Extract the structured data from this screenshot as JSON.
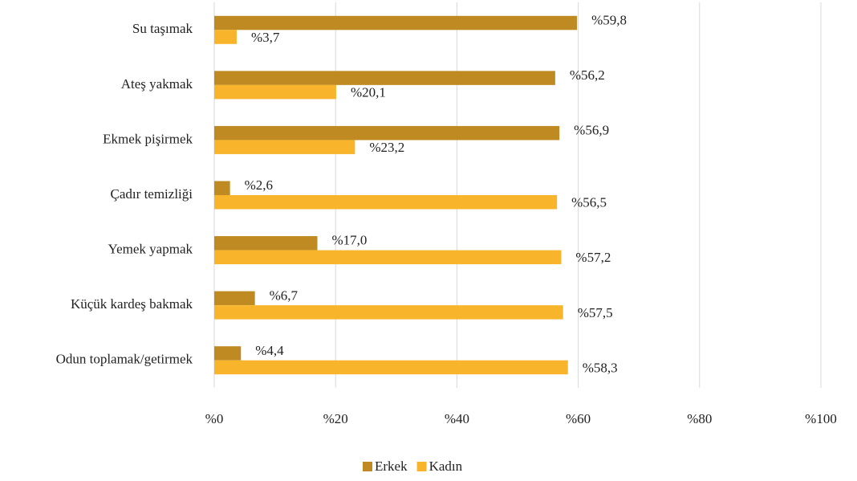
{
  "chart_data": {
    "type": "hbar",
    "categories": [
      "Su taşımak",
      "Ateş yakmak",
      "Ekmek pişirmek",
      "Çadır temizliği",
      "Yemek yapmak",
      "Küçük kardeş bakmak",
      "Odun toplamak/getirmek"
    ],
    "series": [
      {
        "name": "Erkek",
        "color": "#bf8a22",
        "values": [
          59.8,
          56.2,
          56.9,
          2.6,
          17.0,
          6.7,
          4.4
        ],
        "value_labels": [
          "%59,8",
          "%56,2",
          "%56,9",
          "%2,6",
          "%17,0",
          "%6,7",
          "%4,4"
        ]
      },
      {
        "name": "Kadın",
        "color": "#f8b52c",
        "values": [
          3.7,
          20.1,
          23.2,
          56.5,
          57.2,
          57.5,
          58.3
        ],
        "value_labels": [
          "%3,7",
          "%20,1",
          "%23,2",
          "%56,5",
          "%57,2",
          "%57,5",
          "%58,3"
        ]
      }
    ],
    "xlim": [
      0,
      100
    ],
    "xticks": [
      {
        "value": 0,
        "label": "%0"
      },
      {
        "value": 20,
        "label": "%20"
      },
      {
        "value": 40,
        "label": "%40"
      },
      {
        "value": 60,
        "label": "%60"
      },
      {
        "value": 80,
        "label": "%80"
      },
      {
        "value": 100,
        "label": "%100"
      }
    ],
    "grid": true,
    "legend": "bottom"
  }
}
